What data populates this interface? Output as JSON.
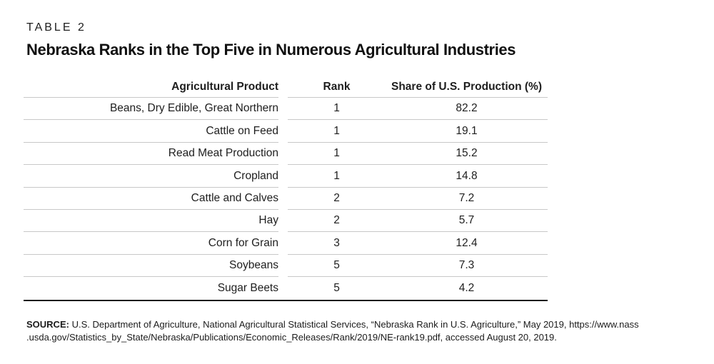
{
  "page": {
    "eyebrow": "TABLE 2",
    "title": "Nebraska Ranks in the Top Five in Numerous Agricultural Industries"
  },
  "chart_data": {
    "type": "table",
    "title": "Nebraska Ranks in the Top Five in Numerous Agricultural Industries",
    "columns": [
      "Agricultural Product",
      "Rank",
      "Share of U.S. Production (%)"
    ],
    "rows": [
      [
        "Beans, Dry Edible, Great Northern",
        "1",
        "82.2"
      ],
      [
        "Cattle on Feed",
        "1",
        "19.1"
      ],
      [
        "Read Meat Production",
        "1",
        "15.2"
      ],
      [
        "Cropland",
        "1",
        "14.8"
      ],
      [
        "Cattle and Calves",
        "2",
        "7.2"
      ],
      [
        "Hay",
        "2",
        "5.7"
      ],
      [
        "Corn for Grain",
        "3",
        "12.4"
      ],
      [
        "Soybeans",
        "5",
        "7.3"
      ],
      [
        "Sugar Beets",
        "5",
        "4.2"
      ]
    ]
  },
  "source": {
    "label": "SOURCE:",
    "line1": "U.S. Department of Agriculture, National Agricultural Statistical Services, “Nebraska Rank in U.S. Agriculture,” May 2019, https://www.nass",
    "line2": ".usda.gov/Statistics_by_State/Nebraska/Publications/Economic_Releases/Rank/2019/NE-rank19.pdf, accessed August 20, 2019."
  },
  "colors": {
    "text": "#1e1e1e",
    "row_separator": "#c8c8c8",
    "table_bottom_border": "#1c1c1c",
    "background": "#ffffff"
  }
}
